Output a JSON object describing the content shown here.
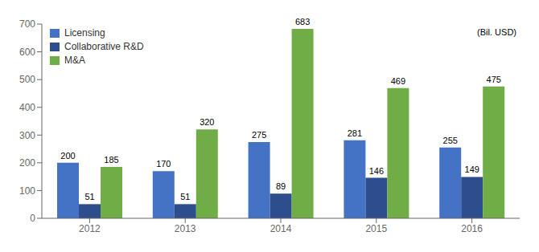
{
  "chart_data": {
    "type": "bar",
    "categories": [
      "2012",
      "2013",
      "2014",
      "2015",
      "2016"
    ],
    "series": [
      {
        "name": "Licensing",
        "color": "#4472C4",
        "values": [
          200,
          170,
          275,
          281,
          255
        ]
      },
      {
        "name": "Collaborative R&D",
        "color": "#2E4D8C",
        "values": [
          51,
          51,
          89,
          146,
          149
        ]
      },
      {
        "name": "M&A",
        "color": "#70AD47",
        "values": [
          185,
          320,
          683,
          469,
          475
        ]
      }
    ],
    "ylim": [
      0,
      700
    ],
    "yticks": [
      0,
      100,
      200,
      300,
      400,
      500,
      600,
      700
    ],
    "data_labels": true,
    "legend": "upper left",
    "annotation": "(Bil. USD)",
    "grid": false
  }
}
